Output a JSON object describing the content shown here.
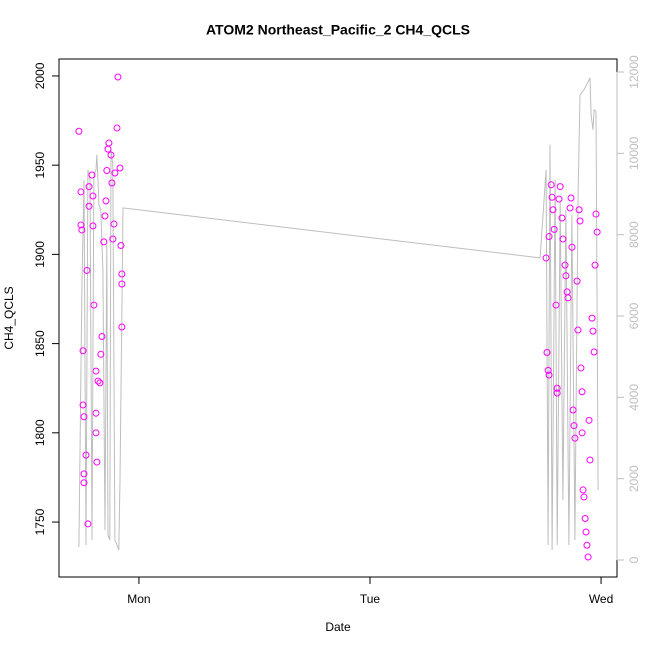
{
  "chart_data": {
    "type": "scatter",
    "title": "ATOM2 Northeast_Pacific_2 CH4_QCLS",
    "x_label": "Date",
    "y_label": "CH4_QCLS",
    "xlim": [
      -0.346,
      2.069
    ],
    "xticks": [
      {
        "value": 0,
        "label": "Mon"
      },
      {
        "value": 1,
        "label": "Tue"
      },
      {
        "value": 2,
        "label": "Wed"
      }
    ],
    "ylim": [
      1719.2,
      2009.5
    ],
    "yticks": [
      1750,
      1800,
      1850,
      1900,
      1950,
      2000
    ],
    "y2lim": [
      -418,
      12320
    ],
    "y2ticks": [
      0,
      2000,
      4000,
      6000,
      8000,
      10000,
      12000
    ],
    "y2_color": "#bebebe",
    "series": [
      {
        "type": "scatter",
        "color": "#ff00ff",
        "x": [
          -0.26,
          -0.251,
          -0.251,
          -0.247,
          -0.242,
          -0.242,
          -0.238,
          -0.238,
          -0.238,
          -0.229,
          -0.225,
          -0.221,
          -0.216,
          -0.216,
          -0.203,
          -0.199,
          -0.199,
          -0.195,
          -0.186,
          -0.186,
          -0.186,
          -0.182,
          -0.177,
          -0.169,
          -0.165,
          -0.16,
          -0.152,
          -0.147,
          -0.143,
          -0.139,
          -0.134,
          -0.13,
          -0.121,
          -0.117,
          -0.113,
          -0.108,
          -0.104,
          -0.095,
          -0.091,
          -0.082,
          -0.078,
          -0.074,
          -0.074,
          -0.074,
          1.762,
          1.766,
          1.771,
          1.775,
          1.775,
          1.784,
          1.788,
          1.792,
          1.797,
          1.805,
          1.81,
          1.81,
          1.818,
          1.823,
          1.831,
          1.835,
          1.844,
          1.848,
          1.853,
          1.857,
          1.866,
          1.87,
          1.874,
          1.879,
          1.883,
          1.887,
          1.896,
          1.9,
          1.905,
          1.909,
          1.913,
          1.918,
          1.918,
          1.922,
          1.926,
          1.931,
          1.935,
          1.939,
          1.944,
          1.948,
          1.952,
          1.961,
          1.965,
          1.97,
          1.974,
          1.978,
          1.983
        ],
        "values": [
          1969,
          1935,
          1916.5,
          1913.7,
          1846,
          1815.6,
          1809,
          1777,
          1772,
          1787.5,
          1891,
          1749,
          1938,
          1927,
          1944.5,
          1932.7,
          1916,
          1871.6,
          1834.6,
          1811,
          1800,
          1783.6,
          1829,
          1828,
          1844,
          1854,
          1907,
          1921.5,
          1930,
          1947,
          1959,
          1962.4,
          1955.7,
          1940,
          1908.6,
          1917,
          1945.6,
          1970.8,
          1999.4,
          1948.4,
          1905,
          1889,
          1883.4,
          1859.3,
          1898,
          1845,
          1835,
          1832.4,
          1910,
          1939,
          1932,
          1925,
          1914,
          1871.6,
          1825,
          1822.3,
          1931,
          1938,
          1920.4,
          1908.6,
          1894,
          1888,
          1879,
          1875.6,
          1926,
          1931.6,
          1904,
          1812.8,
          1804,
          1797,
          1885,
          1857.6,
          1925,
          1918.7,
          1836.3,
          1823,
          1800,
          1768,
          1764,
          1752,
          1744.4,
          1737,
          1730.4,
          1807,
          1784.8,
          1864.3,
          1857,
          1845.3,
          1894,
          1922.6,
          1912.5
        ]
      },
      {
        "type": "line",
        "axis": "y2",
        "color": "#bebebe",
        "x": [
          -0.26,
          -0.247,
          -0.238,
          -0.229,
          -0.221,
          -0.212,
          -0.203,
          -0.195,
          -0.186,
          -0.182,
          -0.173,
          -0.165,
          -0.156,
          -0.147,
          -0.139,
          -0.134,
          -0.126,
          -0.121,
          -0.113,
          -0.104,
          -0.095,
          -0.087,
          -0.082,
          -0.069,
          1.736,
          1.762,
          1.771,
          1.779,
          1.788,
          1.801,
          1.81,
          1.823,
          1.835,
          1.848,
          1.861,
          1.874,
          1.887,
          1.9,
          1.909,
          1.926,
          1.952,
          1.957,
          1.965,
          1.97,
          1.978,
          1.987
        ],
        "values": [
          320,
          6642,
          9348,
          369,
          9594,
          9348,
          492,
          9471,
          9594,
          9963,
          8733,
          8610,
          7134,
          738,
          7749,
          615,
          492,
          10086,
          9717,
          492,
          369,
          246,
          1968,
          8659,
          7429,
          9594,
          369,
          10209,
          246,
          9348,
          369,
          8856,
          1476,
          8610,
          369,
          8487,
          492,
          8856,
          11439,
          11562,
          11857,
          10947,
          10578,
          11070,
          11021,
          1722
        ]
      }
    ]
  }
}
